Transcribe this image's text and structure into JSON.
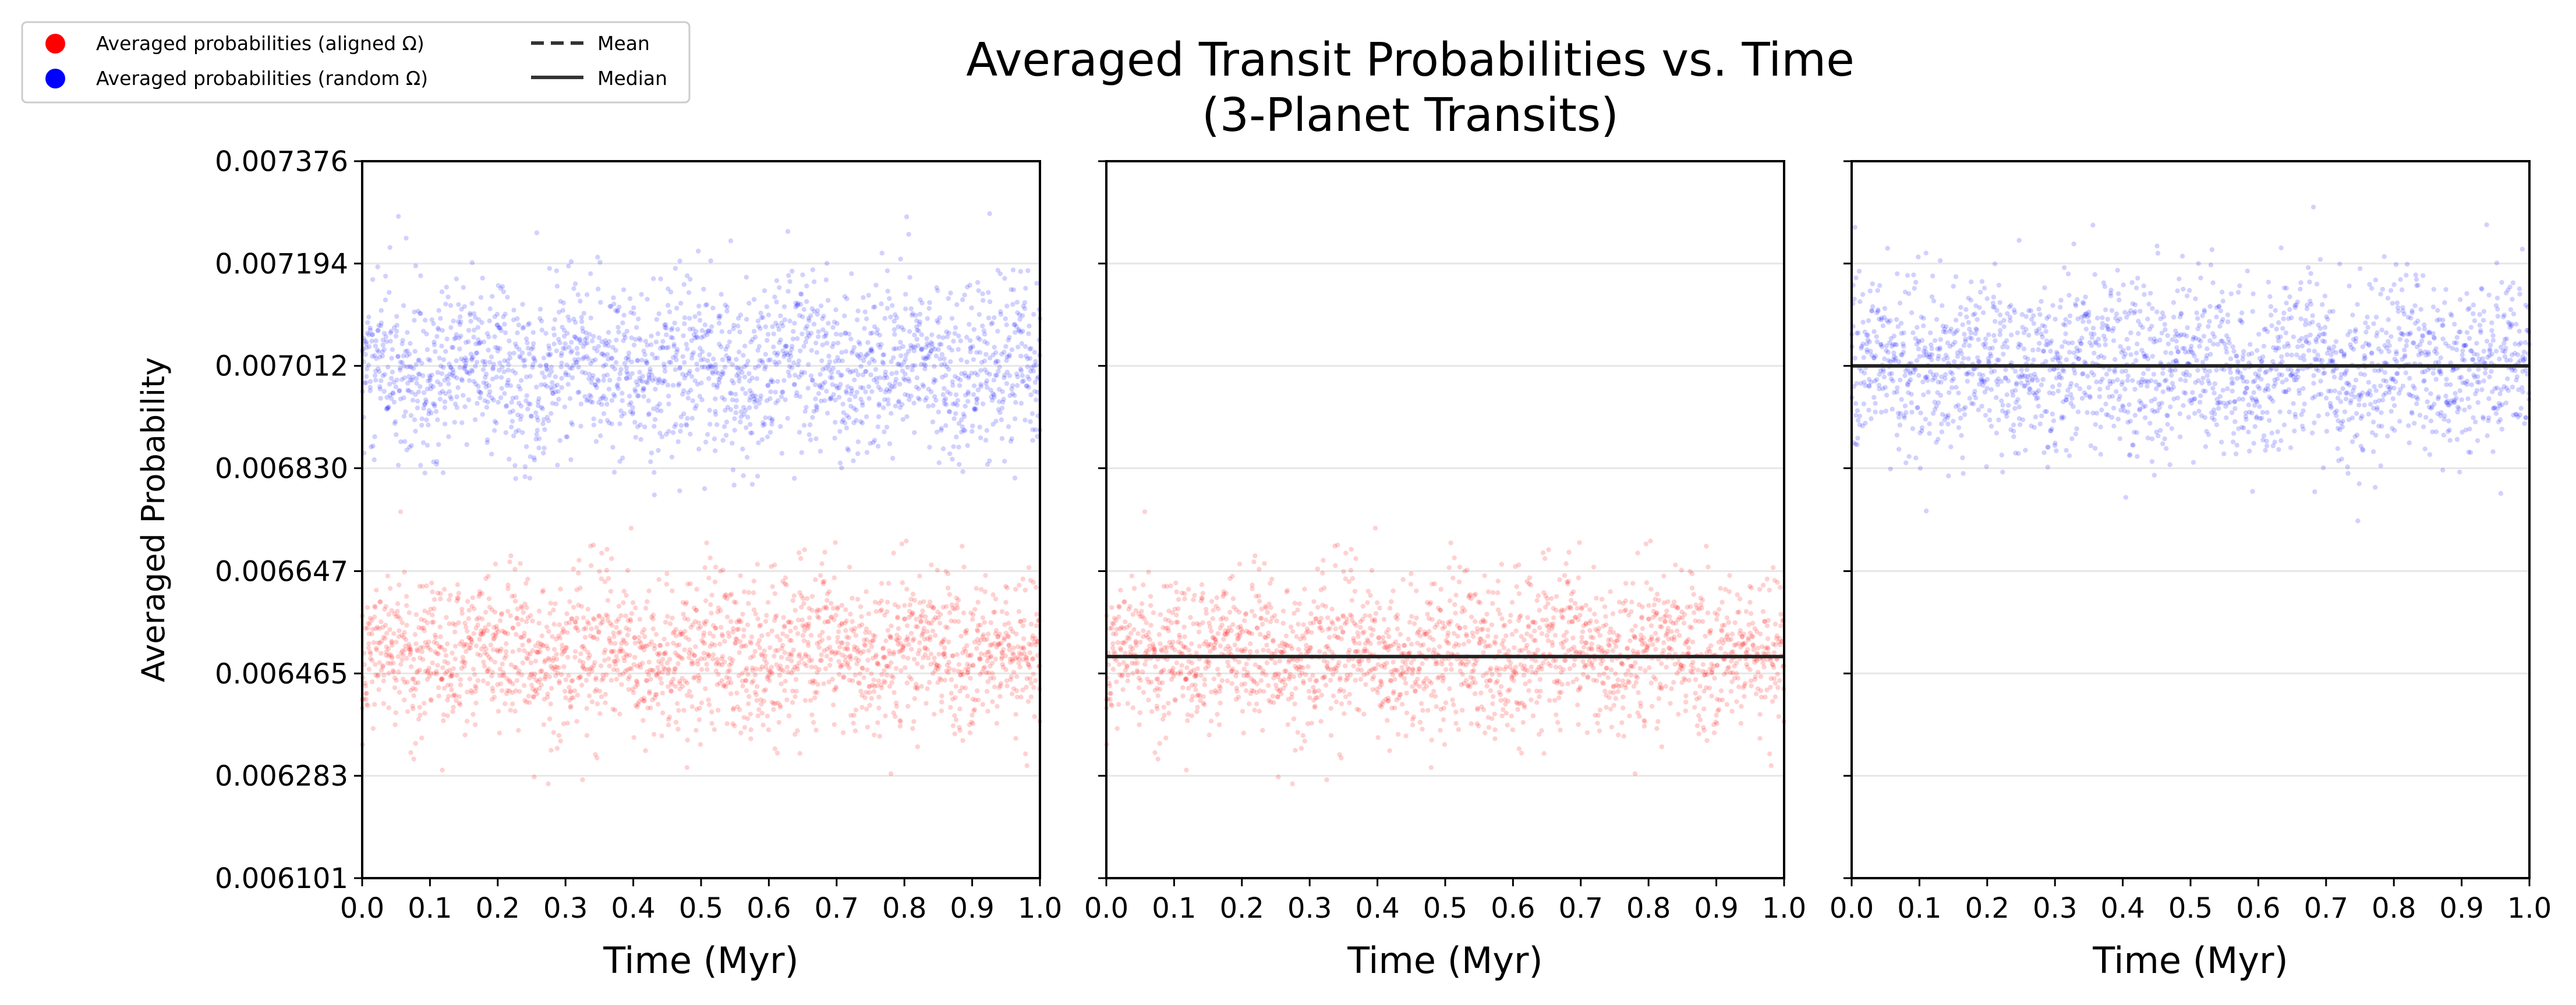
{
  "title_line1": "Averaged Transit Probabilities vs. Time",
  "title_line2": "(3-Planet Transits)",
  "ylabel": "Averaged Probability",
  "legend": {
    "entries": [
      {
        "label": "Averaged probabilities (aligned Ω)",
        "marker": "dot",
        "color": "#ff0000"
      },
      {
        "label": "Averaged probabilities (random Ω)",
        "marker": "dot",
        "color": "#0000ff"
      },
      {
        "label": "Mean",
        "marker": "dashed-line",
        "color": "#333333"
      },
      {
        "label": "Median",
        "marker": "solid-line",
        "color": "#333333"
      }
    ]
  },
  "chart_data": [
    {
      "type": "scatter",
      "xlabel": "Time (Myr)",
      "xlim": [
        0.0,
        1.0
      ],
      "ylim": [
        0.006101,
        0.007376
      ],
      "xticks": [
        "0.0",
        "0.1",
        "0.2",
        "0.3",
        "0.4",
        "0.5",
        "0.6",
        "0.7",
        "0.8",
        "0.9",
        "1.0"
      ],
      "yticks": [
        "0.006101",
        "0.006283",
        "0.006465",
        "0.006647",
        "0.006830",
        "0.007012",
        "0.007194",
        "0.007376"
      ],
      "grid": "y",
      "series": [
        {
          "name": "Averaged probabilities (aligned Ω)",
          "color": "#ff0000",
          "center": 0.0065,
          "spread": 6.8e-05,
          "n_points": 2000,
          "min": 0.00615,
          "max": 0.00677
        },
        {
          "name": "Averaged probabilities (random Ω)",
          "color": "#0000ff",
          "center": 0.00701,
          "spread": 7.5e-05,
          "n_points": 2000,
          "min": 0.00673,
          "max": 0.00732
        }
      ],
      "lines": []
    },
    {
      "type": "scatter",
      "xlabel": "Time (Myr)",
      "xlim": [
        0.0,
        1.0
      ],
      "ylim": [
        0.006101,
        0.007376
      ],
      "xticks": [
        "0.0",
        "0.1",
        "0.2",
        "0.3",
        "0.4",
        "0.5",
        "0.6",
        "0.7",
        "0.8",
        "0.9",
        "1.0"
      ],
      "yticks": [
        "0.006101",
        "0.006283",
        "0.006465",
        "0.006647",
        "0.006830",
        "0.007012",
        "0.007194",
        "0.007376"
      ],
      "grid": "y",
      "series": [
        {
          "name": "Averaged probabilities (aligned Ω)",
          "color": "#ff0000",
          "center": 0.0065,
          "spread": 6.8e-05,
          "n_points": 2000,
          "min": 0.00615,
          "max": 0.00677
        }
      ],
      "lines": [
        {
          "name": "Median",
          "style": "solid",
          "color": "#222222",
          "y": 0.006495
        }
      ]
    },
    {
      "type": "scatter",
      "xlabel": "Time (Myr)",
      "xlim": [
        0.0,
        1.0
      ],
      "ylim": [
        0.006101,
        0.007376
      ],
      "xticks": [
        "0.0",
        "0.1",
        "0.2",
        "0.3",
        "0.4",
        "0.5",
        "0.6",
        "0.7",
        "0.8",
        "0.9",
        "1.0"
      ],
      "yticks": [
        "0.006101",
        "0.006283",
        "0.006465",
        "0.006647",
        "0.006830",
        "0.007012",
        "0.007194",
        "0.007376"
      ],
      "grid": "y",
      "series": [
        {
          "name": "Averaged probabilities (random Ω)",
          "color": "#0000ff",
          "center": 0.00701,
          "spread": 7.5e-05,
          "n_points": 2000,
          "min": 0.00673,
          "max": 0.00732
        }
      ],
      "lines": [
        {
          "name": "Median",
          "style": "solid",
          "color": "#222222",
          "y": 0.007012
        }
      ]
    }
  ]
}
